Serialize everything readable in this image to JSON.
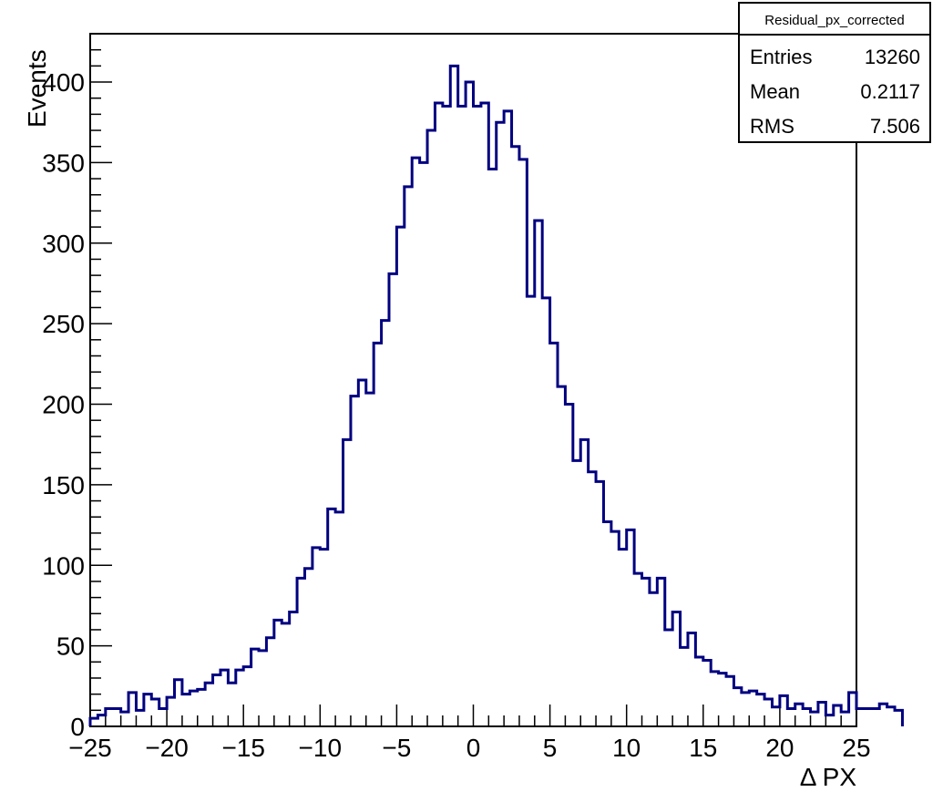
{
  "chart_data": {
    "type": "bar",
    "histogram": true,
    "title": "",
    "xlabel": "Δ PX",
    "ylabel": "Events",
    "xlim": [
      -25,
      25
    ],
    "ylim": [
      0,
      430
    ],
    "bin_width": 0.5,
    "x_ticks": [
      -25,
      -20,
      -15,
      -10,
      -5,
      0,
      5,
      10,
      15,
      20,
      25
    ],
    "x_tick_labels": [
      "−25",
      "−20",
      "−15",
      "−10",
      "−5",
      "0",
      "5",
      "10",
      "15",
      "20",
      "25"
    ],
    "y_ticks": [
      0,
      50,
      100,
      150,
      200,
      250,
      300,
      350,
      400
    ],
    "y_tick_labels": [
      "0",
      "50",
      "100",
      "150",
      "200",
      "250",
      "300",
      "350",
      "400"
    ],
    "line_color": "#000080",
    "values": [
      5,
      7,
      11,
      11,
      9,
      21,
      10,
      20,
      17,
      11,
      18,
      29,
      20,
      22,
      23,
      27,
      32,
      35,
      27,
      35,
      37,
      48,
      47,
      55,
      66,
      64,
      71,
      92,
      98,
      111,
      110,
      135,
      133,
      178,
      205,
      215,
      207,
      238,
      252,
      281,
      310,
      335,
      353,
      350,
      370,
      387,
      385,
      410,
      385,
      400,
      385,
      387,
      346,
      375,
      382,
      360,
      352,
      267,
      314,
      266,
      238,
      211,
      200,
      165,
      178,
      158,
      152,
      127,
      121,
      110,
      122,
      95,
      92,
      83,
      92,
      60,
      71,
      49,
      58,
      43,
      41,
      34,
      33,
      31,
      24,
      21,
      22,
      20,
      17,
      12,
      19,
      11,
      14,
      11,
      9,
      15,
      7,
      13,
      9,
      21,
      11,
      11,
      11,
      14,
      12,
      10
    ]
  },
  "stats_box": {
    "title": "Residual_px_corrected",
    "rows": [
      {
        "label": "Entries",
        "value": "13260"
      },
      {
        "label": "Mean",
        "value": "0.2117"
      },
      {
        "label": "RMS",
        "value": "7.506"
      }
    ]
  }
}
